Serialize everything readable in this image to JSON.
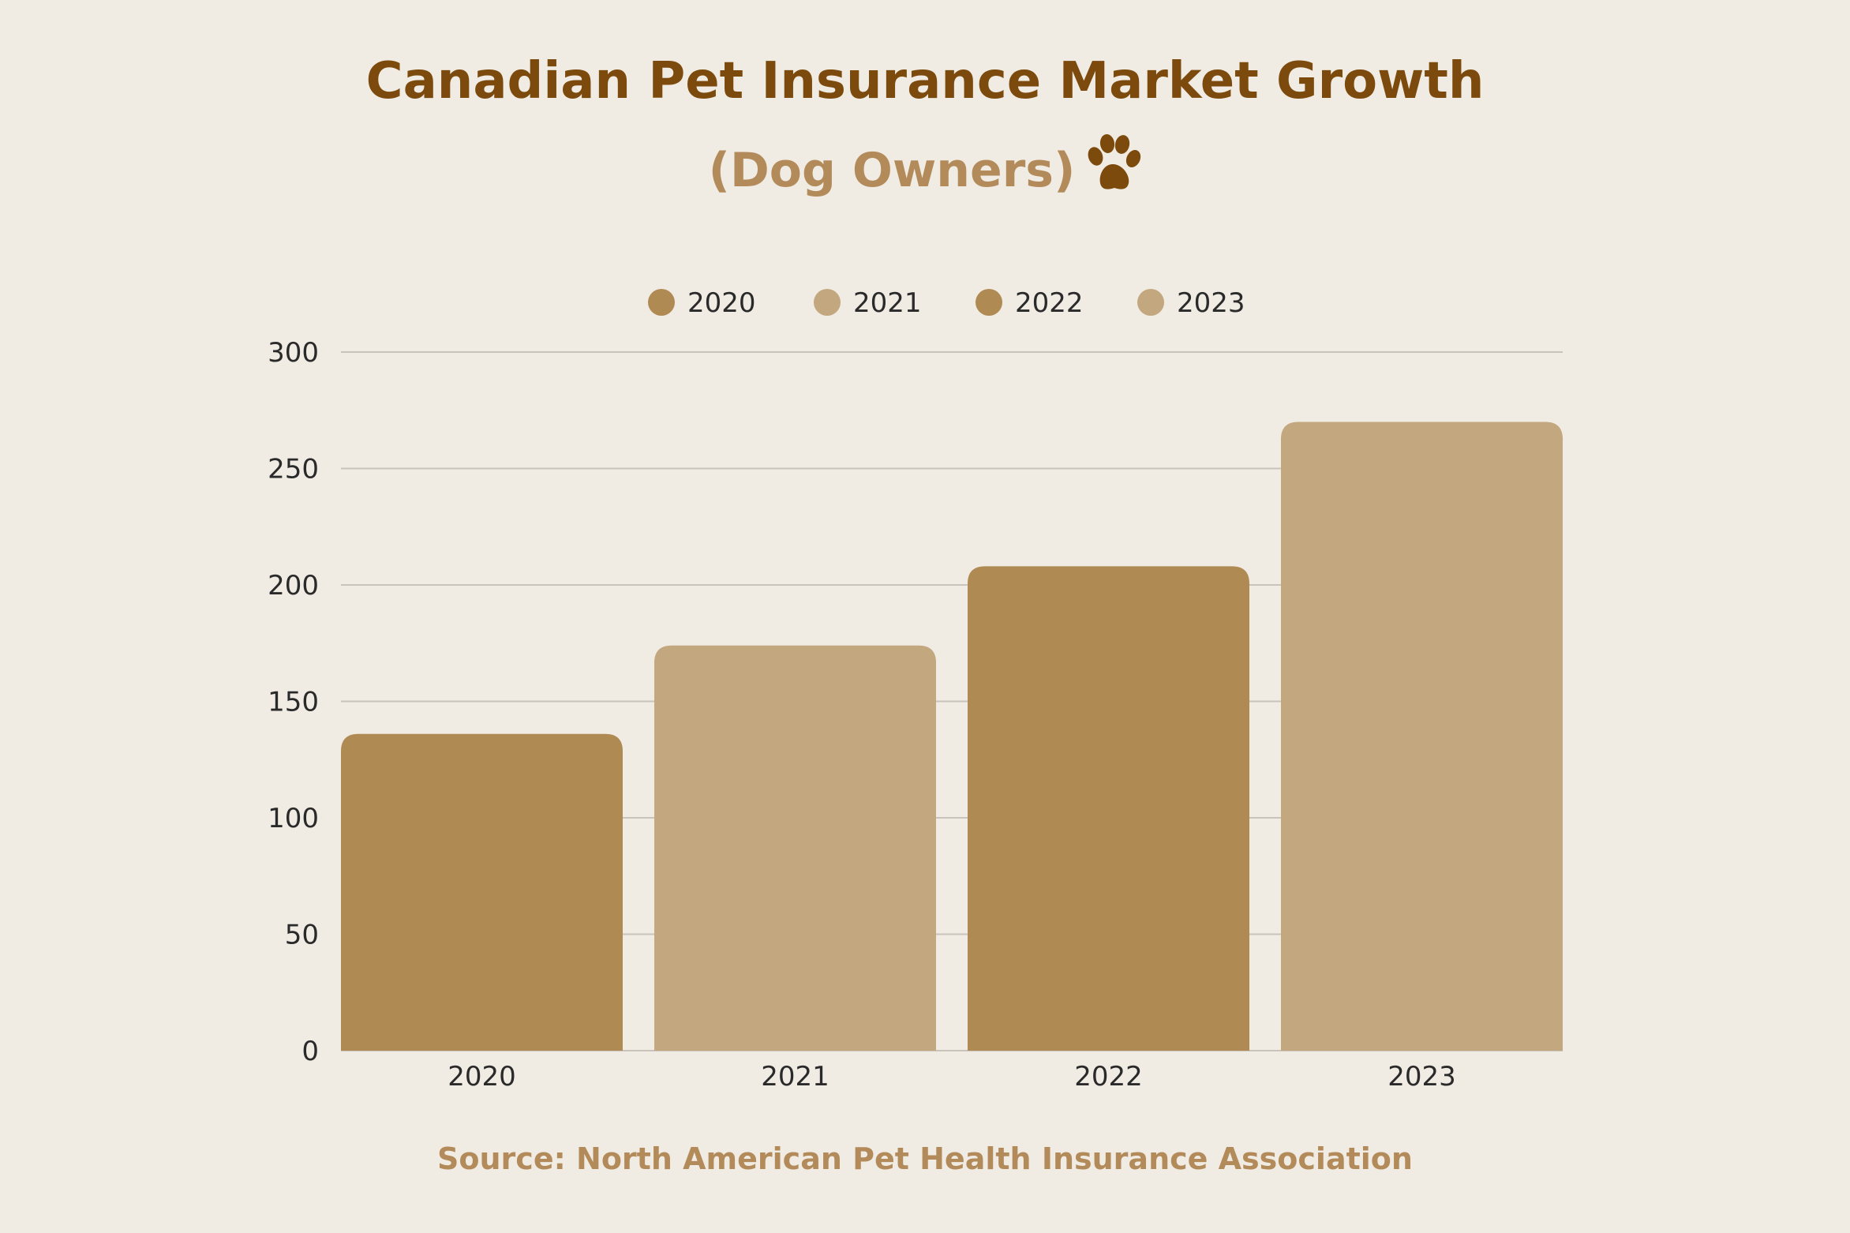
{
  "chart_data": {
    "type": "bar",
    "title": "Canadian Pet Insurance Market Growth",
    "subtitle": "(Dog Owners)",
    "categories": [
      "2020",
      "2021",
      "2022",
      "2023"
    ],
    "values": [
      136,
      174,
      208,
      270
    ],
    "bar_colors": [
      "#b08a53",
      "#c2a77f",
      "#b08a53",
      "#c2a77f"
    ],
    "legend": {
      "placement": "top-center",
      "entries": [
        {
          "label": "2020",
          "color": "#b08a53"
        },
        {
          "label": "2021",
          "color": "#c2a77f"
        },
        {
          "label": "2022",
          "color": "#b08a53"
        },
        {
          "label": "2023",
          "color": "#c2a77f"
        }
      ]
    },
    "ylim": [
      0,
      300
    ],
    "yticks": [
      0,
      50,
      100,
      150,
      200,
      250,
      300
    ],
    "xlabel": "",
    "ylabel": "",
    "grid": true,
    "source": "Source: North American Pet Health Insurance Association"
  },
  "icons": {
    "subtitle_icon": "paw-icon"
  },
  "colors": {
    "background": "#f0ebe3",
    "title": "#7b4a0c",
    "subtitle": "#b38b5a",
    "gridline": "#c9c3bb"
  }
}
